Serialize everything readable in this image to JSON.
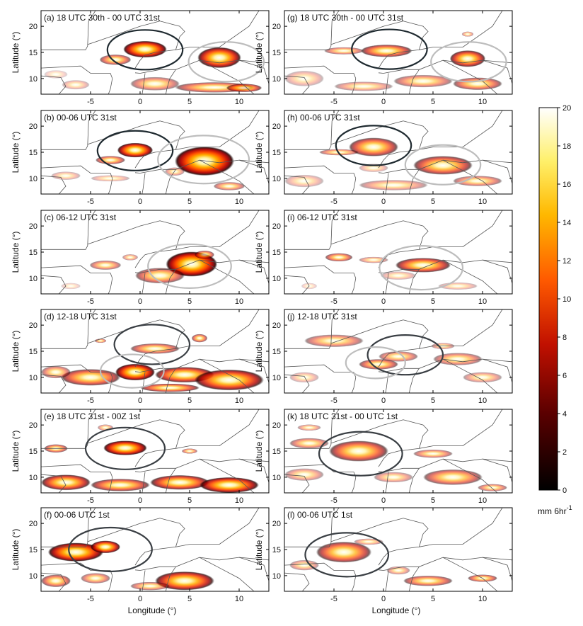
{
  "figure": {
    "xlabel": "Longitude (°)",
    "ylabel": "Latitude (°)",
    "colorbar": {
      "label_main": "mm 6hr",
      "label_exp": "-1",
      "min": 0,
      "max": 20,
      "ticks": [
        "0",
        "2",
        "4",
        "6",
        "8",
        "10",
        "12",
        "14",
        "16",
        "18",
        "20"
      ]
    }
  },
  "chart_data": [
    {
      "type": "heatmap",
      "id": "a",
      "title": "(a) 18 UTC 30th - 00 UTC 31st",
      "xlim": [
        -10,
        13
      ],
      "ylim": [
        7,
        23
      ],
      "xticks": [
        "-5",
        "0",
        "5",
        "10"
      ],
      "yticks": [
        "10",
        "15",
        "20"
      ],
      "circles": [
        {
          "lon": 0.5,
          "lat": 15.5,
          "r": 3.8,
          "color": "#1f2a30"
        },
        {
          "lon": 8.7,
          "lat": 13.2,
          "r": 3.8,
          "color": "#bdbdbd"
        }
      ],
      "blobs": [
        [
          0.5,
          15.6,
          2.2,
          1.6,
          0.95
        ],
        [
          -2.5,
          13.6,
          1.6,
          1.0,
          0.6
        ],
        [
          8.0,
          14.0,
          2.2,
          2.0,
          0.9
        ],
        [
          -6.5,
          8.8,
          1.4,
          0.9,
          0.3
        ],
        [
          1.5,
          9.0,
          2.5,
          1.3,
          0.5
        ],
        [
          7.5,
          8.3,
          4.0,
          1.0,
          0.6
        ],
        [
          -8.5,
          10.8,
          1.2,
          0.8,
          0.2
        ],
        [
          10.5,
          8.2,
          1.8,
          0.8,
          0.7
        ]
      ]
    },
    {
      "type": "heatmap",
      "id": "g",
      "title": "(g) 18 UTC 30th - 00 UTC 31st",
      "xlim": [
        -10,
        13
      ],
      "ylim": [
        7,
        23
      ],
      "xticks": [
        "-5",
        "0",
        "5",
        "10"
      ],
      "yticks": [
        "10",
        "15",
        "20"
      ],
      "circles": [
        {
          "lon": 0.6,
          "lat": 15.6,
          "r": 3.8,
          "color": "#1f2a30"
        },
        {
          "lon": 8.6,
          "lat": 13.2,
          "r": 3.8,
          "color": "#bdbdbd"
        }
      ],
      "blobs": [
        [
          0.3,
          15.3,
          2.6,
          1.2,
          0.7
        ],
        [
          -4.0,
          15.3,
          2.0,
          0.7,
          0.5
        ],
        [
          8.5,
          13.8,
          1.8,
          1.6,
          0.8
        ],
        [
          -8.0,
          10.0,
          2.0,
          1.5,
          0.3
        ],
        [
          4.0,
          9.5,
          3.0,
          1.2,
          0.5
        ],
        [
          -2.0,
          8.5,
          3.0,
          0.9,
          0.4
        ],
        [
          9.5,
          9.0,
          2.5,
          1.2,
          0.6
        ],
        [
          8.5,
          18.5,
          0.6,
          0.5,
          0.4
        ]
      ]
    },
    {
      "type": "heatmap",
      "id": "b",
      "title": "(b) 00-06 UTC 31st",
      "xlim": [
        -10,
        13
      ],
      "ylim": [
        7,
        23
      ],
      "xticks": [
        "-5",
        "0",
        "5",
        "10"
      ],
      "yticks": [
        "10",
        "15",
        "20"
      ],
      "circles": [
        {
          "lon": -0.5,
          "lat": 15.3,
          "r": 3.8,
          "color": "#1f2a30"
        },
        {
          "lon": 6.4,
          "lat": 13.6,
          "r": 4.6,
          "color": "#bdbdbd"
        }
      ],
      "blobs": [
        [
          -0.5,
          15.4,
          1.8,
          1.4,
          0.95
        ],
        [
          -3.0,
          13.5,
          1.5,
          0.8,
          0.6
        ],
        [
          6.5,
          13.3,
          3.0,
          2.8,
          1.0
        ],
        [
          3.5,
          11.3,
          1.0,
          0.8,
          0.4
        ],
        [
          -7.5,
          10.5,
          1.5,
          0.8,
          0.3
        ],
        [
          -3.0,
          10.0,
          2.0,
          0.6,
          0.3
        ],
        [
          9.0,
          8.5,
          1.6,
          0.8,
          0.5
        ]
      ]
    },
    {
      "type": "heatmap",
      "id": "h",
      "title": "(h) 00-06 UTC 31st",
      "xlim": [
        -10,
        13
      ],
      "ylim": [
        7,
        23
      ],
      "xticks": [
        "-5",
        "0",
        "5",
        "10"
      ],
      "yticks": [
        "10",
        "15",
        "20"
      ],
      "circles": [
        {
          "lon": -1.0,
          "lat": 16.3,
          "r": 3.8,
          "color": "#1f2a30"
        },
        {
          "lon": 6.0,
          "lat": 12.6,
          "r": 3.8,
          "color": "#bdbdbd"
        }
      ],
      "blobs": [
        [
          -1.0,
          16.0,
          2.5,
          1.8,
          0.7
        ],
        [
          -4.5,
          15.0,
          2.0,
          0.6,
          0.5
        ],
        [
          6.0,
          12.5,
          3.0,
          1.8,
          0.7
        ],
        [
          -8.0,
          9.5,
          2.0,
          1.2,
          0.3
        ],
        [
          1.0,
          8.7,
          3.5,
          1.0,
          0.4
        ],
        [
          9.5,
          9.5,
          2.5,
          1.0,
          0.5
        ],
        [
          -1.0,
          12.0,
          1.5,
          0.8,
          0.3
        ]
      ]
    },
    {
      "type": "heatmap",
      "id": "c",
      "title": "(c) 06-12 UTC 31st",
      "xlim": [
        -10,
        13
      ],
      "ylim": [
        7,
        23
      ],
      "xticks": [
        "-5",
        "0",
        "5",
        "10"
      ],
      "yticks": [
        "10",
        "15",
        "20"
      ],
      "circles": [
        {
          "lon": 5.0,
          "lat": 12.3,
          "r": 4.2,
          "color": "#bdbdbd"
        }
      ],
      "blobs": [
        [
          5.2,
          12.7,
          2.6,
          2.4,
          1.0
        ],
        [
          2.0,
          10.5,
          2.5,
          1.5,
          0.6
        ],
        [
          -3.5,
          12.5,
          1.6,
          0.9,
          0.5
        ],
        [
          -1.0,
          14.0,
          0.8,
          0.6,
          0.4
        ],
        [
          6.5,
          14.5,
          1.0,
          0.8,
          0.6
        ],
        [
          -7.0,
          8.5,
          1.0,
          0.6,
          0.2
        ]
      ]
    },
    {
      "type": "heatmap",
      "id": "i",
      "title": "(i) 06-12 UTC 31st",
      "xlim": [
        -10,
        13
      ],
      "ylim": [
        7,
        23
      ],
      "xticks": [
        "-5",
        "0",
        "5",
        "10"
      ],
      "yticks": [
        "10",
        "15",
        "20"
      ],
      "circles": [
        {
          "lon": 3.8,
          "lat": 12.0,
          "r": 4.2,
          "color": "#bdbdbd"
        }
      ],
      "blobs": [
        [
          4.0,
          12.5,
          2.8,
          1.4,
          0.75
        ],
        [
          -4.5,
          14.0,
          1.4,
          0.8,
          0.6
        ],
        [
          -1.0,
          13.5,
          1.5,
          0.6,
          0.4
        ],
        [
          1.5,
          10.5,
          1.8,
          0.8,
          0.3
        ],
        [
          7.5,
          8.5,
          2.0,
          0.7,
          0.3
        ],
        [
          -7.5,
          8.5,
          0.8,
          0.6,
          0.2
        ]
      ]
    },
    {
      "type": "heatmap",
      "id": "d",
      "title": "(d) 12-18 UTC 31st",
      "xlim": [
        -10,
        13
      ],
      "ylim": [
        7,
        23
      ],
      "xticks": [
        "-5",
        "0",
        "5",
        "10"
      ],
      "yticks": [
        "10",
        "15",
        "20"
      ],
      "circles": [
        {
          "lon": 1.2,
          "lat": 16.3,
          "r": 3.8,
          "color": "#3a3f44"
        },
        {
          "lon": -0.8,
          "lat": 11.2,
          "r": 3.2,
          "color": "#bdbdbd"
        }
      ],
      "blobs": [
        [
          -0.5,
          11.0,
          2.0,
          1.6,
          0.95
        ],
        [
          -5.0,
          10.0,
          3.0,
          1.6,
          0.7
        ],
        [
          4.5,
          10.5,
          3.0,
          1.5,
          0.8
        ],
        [
          9.0,
          9.5,
          3.5,
          2.0,
          0.85
        ],
        [
          -8.5,
          11.0,
          1.5,
          1.2,
          0.5
        ],
        [
          1.5,
          15.5,
          2.5,
          1.0,
          0.6
        ],
        [
          6.0,
          17.5,
          0.8,
          0.8,
          0.6
        ],
        [
          -4.0,
          17.0,
          0.6,
          0.4,
          0.5
        ],
        [
          3.0,
          8.0,
          3.0,
          0.8,
          0.7
        ]
      ]
    },
    {
      "type": "heatmap",
      "id": "j",
      "title": "(j) 12-18 UTC 31st",
      "xlim": [
        -10,
        13
      ],
      "ylim": [
        7,
        23
      ],
      "xticks": [
        "-5",
        "0",
        "5",
        "10"
      ],
      "yticks": [
        "10",
        "15",
        "20"
      ],
      "circles": [
        {
          "lon": 2.2,
          "lat": 14.3,
          "r": 3.8,
          "color": "#3a3f44"
        },
        {
          "lon": -0.8,
          "lat": 12.8,
          "r": 3.0,
          "color": "#bdbdbd"
        }
      ],
      "blobs": [
        [
          -5.0,
          17.0,
          3.0,
          1.2,
          0.5
        ],
        [
          1.5,
          14.0,
          2.0,
          1.0,
          0.5
        ],
        [
          -0.5,
          12.5,
          2.0,
          1.0,
          0.6
        ],
        [
          7.5,
          13.5,
          2.5,
          1.2,
          0.5
        ],
        [
          6.0,
          16.0,
          1.2,
          0.6,
          0.4
        ],
        [
          -8.0,
          10.0,
          1.5,
          1.0,
          0.3
        ],
        [
          10.0,
          10.0,
          2.0,
          1.0,
          0.4
        ]
      ]
    },
    {
      "type": "heatmap",
      "id": "e",
      "title": "(e) 18 UTC 31st - 00Z 1st",
      "xlim": [
        -10,
        13
      ],
      "ylim": [
        7,
        23
      ],
      "xticks": [
        "-5",
        "0",
        "5",
        "10"
      ],
      "yticks": [
        "10",
        "15",
        "20"
      ],
      "circles": [
        {
          "lon": -1.5,
          "lat": 15.5,
          "r": 4.0,
          "color": "#3a3f44"
        }
      ],
      "blobs": [
        [
          -1.5,
          15.6,
          2.2,
          1.4,
          0.95
        ],
        [
          -7.5,
          9.0,
          2.5,
          1.5,
          0.8
        ],
        [
          -2.0,
          8.5,
          3.0,
          1.2,
          0.7
        ],
        [
          4.0,
          9.0,
          3.0,
          1.4,
          0.8
        ],
        [
          9.0,
          8.5,
          3.0,
          1.5,
          0.9
        ],
        [
          -8.5,
          15.5,
          1.2,
          0.8,
          0.6
        ],
        [
          5.0,
          15.0,
          0.8,
          0.5,
          0.5
        ],
        [
          -3.5,
          19.5,
          0.8,
          0.6,
          0.4
        ]
      ]
    },
    {
      "type": "heatmap",
      "id": "k",
      "title": "(k) 18 UTC 31st - 00 UTC 1st",
      "xlim": [
        -10,
        13
      ],
      "ylim": [
        7,
        23
      ],
      "xticks": [
        "-5",
        "0",
        "5",
        "10"
      ],
      "yticks": [
        "10",
        "15",
        "20"
      ],
      "circles": [
        {
          "lon": -2.3,
          "lat": 14.5,
          "r": 4.2,
          "color": "#3a3f44"
        }
      ],
      "blobs": [
        [
          -2.5,
          15.0,
          3.0,
          2.0,
          0.7
        ],
        [
          -7.5,
          16.5,
          2.0,
          1.0,
          0.5
        ],
        [
          -7.5,
          19.5,
          1.2,
          0.6,
          0.4
        ],
        [
          5.0,
          14.5,
          2.0,
          0.8,
          0.5
        ],
        [
          7.0,
          10.0,
          3.0,
          1.5,
          0.6
        ],
        [
          -8.0,
          10.5,
          2.0,
          1.2,
          0.4
        ],
        [
          1.0,
          10.0,
          2.0,
          1.0,
          0.4
        ],
        [
          11.0,
          8.0,
          1.5,
          0.7,
          0.5
        ]
      ]
    },
    {
      "type": "heatmap",
      "id": "f",
      "title": "(f) 00-06 UTC 1st",
      "xlim": [
        -10,
        13
      ],
      "ylim": [
        7,
        23
      ],
      "xticks": [
        "-5",
        "0",
        "5",
        "10"
      ],
      "yticks": [
        "10",
        "15",
        "20"
      ],
      "circles": [
        {
          "lon": -3.0,
          "lat": 15.0,
          "r": 4.2,
          "color": "#3a3f44"
        }
      ],
      "blobs": [
        [
          -6.5,
          14.5,
          2.8,
          1.8,
          0.95
        ],
        [
          -3.5,
          15.5,
          1.5,
          1.2,
          0.9
        ],
        [
          4.5,
          9.0,
          3.0,
          1.8,
          0.85
        ],
        [
          -8.5,
          9.0,
          1.5,
          1.2,
          0.6
        ],
        [
          -4.5,
          9.5,
          1.5,
          1.0,
          0.5
        ],
        [
          1.0,
          8.0,
          2.0,
          0.8,
          0.5
        ]
      ]
    },
    {
      "type": "heatmap",
      "id": "l",
      "title": "(l) 00-06 UTC 1st",
      "xlim": [
        -10,
        13
      ],
      "ylim": [
        7,
        23
      ],
      "xticks": [
        "-5",
        "0",
        "5",
        "10"
      ],
      "yticks": [
        "10",
        "15",
        "20"
      ],
      "circles": [
        {
          "lon": -3.7,
          "lat": 14.0,
          "r": 4.2,
          "color": "#3a3f44"
        }
      ],
      "blobs": [
        [
          -4.0,
          14.5,
          2.8,
          2.0,
          0.7
        ],
        [
          -8.0,
          12.0,
          1.5,
          1.0,
          0.4
        ],
        [
          4.5,
          9.0,
          2.5,
          1.0,
          0.6
        ],
        [
          10.0,
          9.5,
          1.5,
          0.7,
          0.6
        ],
        [
          1.5,
          11.0,
          1.2,
          0.8,
          0.4
        ],
        [
          -1.5,
          16.5,
          1.5,
          0.6,
          0.4
        ]
      ]
    }
  ]
}
